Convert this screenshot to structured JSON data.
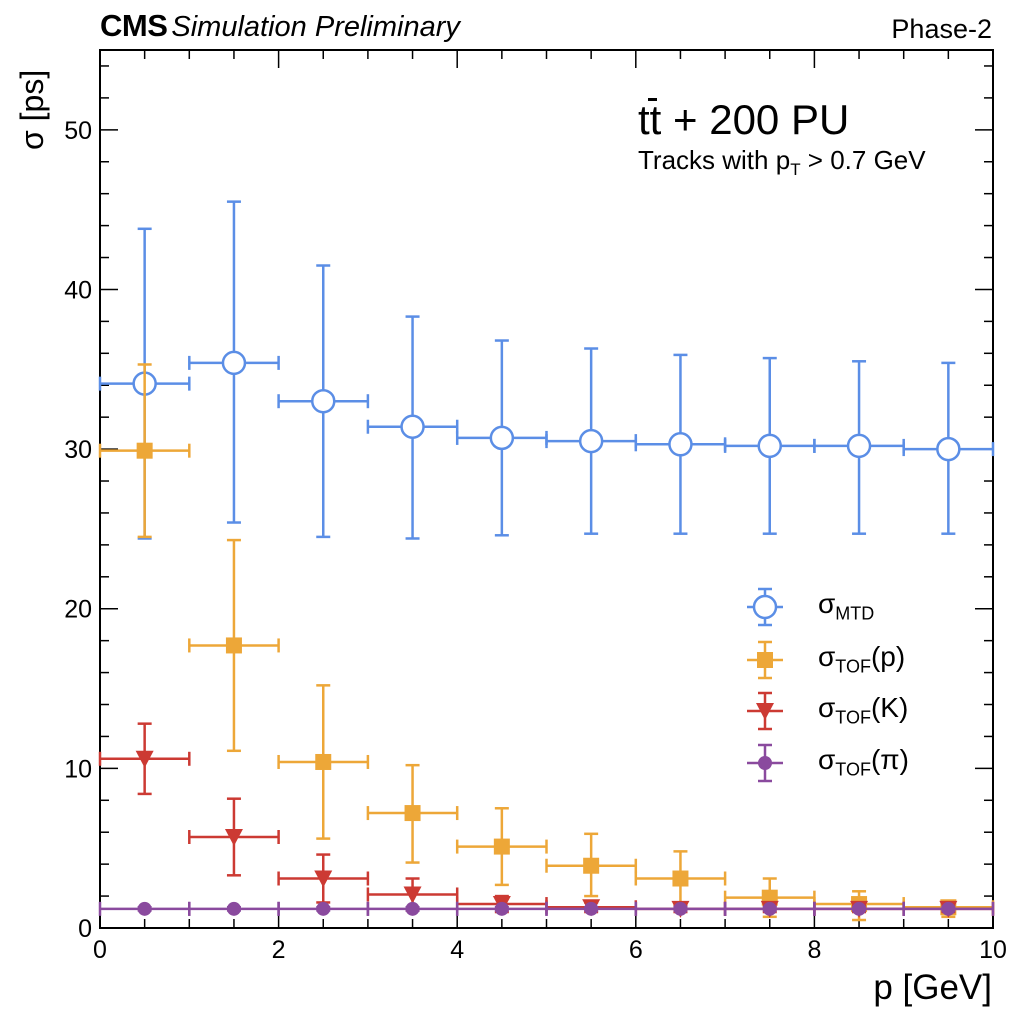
{
  "experiment": {
    "name": "CMS",
    "status": "Simulation Preliminary",
    "phase": "Phase-2"
  },
  "annotations": {
    "process_main": "tt",
    "process_rest": " + 200 PU",
    "cut_prefix": "Tracks with p",
    "cut_sub": "T",
    "cut_suffix": " > 0.7 GeV"
  },
  "chart_data": {
    "type": "scatter",
    "xlabel": "p [GeV]",
    "ylabel": "σ [ps]",
    "xlim": [
      0,
      10
    ],
    "ylim": [
      0,
      55
    ],
    "xticks": [
      0,
      2,
      4,
      6,
      8,
      10
    ],
    "yticks": [
      0,
      10,
      20,
      30,
      40,
      50
    ],
    "grid": false,
    "legend_placement": "right",
    "x": [
      0.5,
      1.5,
      2.5,
      3.5,
      4.5,
      5.5,
      6.5,
      7.5,
      8.5,
      9.5
    ],
    "x_err": 0.5,
    "series": [
      {
        "name": "σMTD",
        "sym": "σ",
        "sub": "MTD",
        "suffix": "",
        "marker": "open-circle",
        "color": "#5b8ee6",
        "values": [
          34.1,
          35.4,
          33.0,
          31.4,
          30.7,
          30.5,
          30.3,
          30.2,
          30.2,
          30.0
        ],
        "err_low": [
          9.7,
          10.0,
          8.5,
          7.0,
          6.1,
          5.8,
          5.6,
          5.5,
          5.5,
          5.3
        ],
        "err_high": [
          9.7,
          10.1,
          8.5,
          6.9,
          6.1,
          5.8,
          5.6,
          5.5,
          5.3,
          5.4
        ]
      },
      {
        "name": "σTOF(p)",
        "sym": "σ",
        "sub": "TOF",
        "suffix": "(p)",
        "marker": "square",
        "color": "#eda738",
        "values": [
          29.9,
          17.7,
          10.4,
          7.2,
          5.1,
          3.9,
          3.1,
          1.9,
          1.5,
          1.3
        ],
        "err_low": [
          5.4,
          6.6,
          4.8,
          3.1,
          2.4,
          1.9,
          1.6,
          1.2,
          1.0,
          0.6
        ],
        "err_high": [
          5.4,
          6.6,
          4.8,
          3.0,
          2.4,
          2.0,
          1.7,
          1.2,
          0.8,
          0.4
        ]
      },
      {
        "name": "σTOF(K)",
        "sym": "σ",
        "sub": "TOF",
        "suffix": "(K)",
        "marker": "down-triangle",
        "color": "#cc3a33",
        "values": [
          10.6,
          5.7,
          3.1,
          2.1,
          1.5,
          1.3,
          1.2,
          1.2,
          1.2,
          1.2
        ],
        "err_low": [
          2.2,
          2.4,
          1.5,
          1.0,
          0.5,
          0.3,
          0.2,
          0.2,
          0.2,
          0.2
        ],
        "err_high": [
          2.2,
          2.4,
          1.5,
          1.0,
          0.5,
          0.3,
          0.2,
          0.2,
          0.2,
          0.2
        ]
      },
      {
        "name": "σTOF(π)",
        "sym": "σ",
        "sub": "TOF",
        "suffix": "(π)",
        "marker": "filled-circle",
        "color": "#8a4a9e",
        "values": [
          1.2,
          1.2,
          1.2,
          1.2,
          1.2,
          1.2,
          1.2,
          1.2,
          1.2,
          1.2
        ],
        "err_low": [
          0.1,
          0.1,
          0.1,
          0.1,
          0.1,
          0.1,
          0.1,
          0.1,
          0.1,
          0.1
        ],
        "err_high": [
          0.1,
          0.1,
          0.1,
          0.1,
          0.1,
          0.1,
          0.1,
          0.1,
          0.1,
          0.1
        ]
      }
    ]
  }
}
